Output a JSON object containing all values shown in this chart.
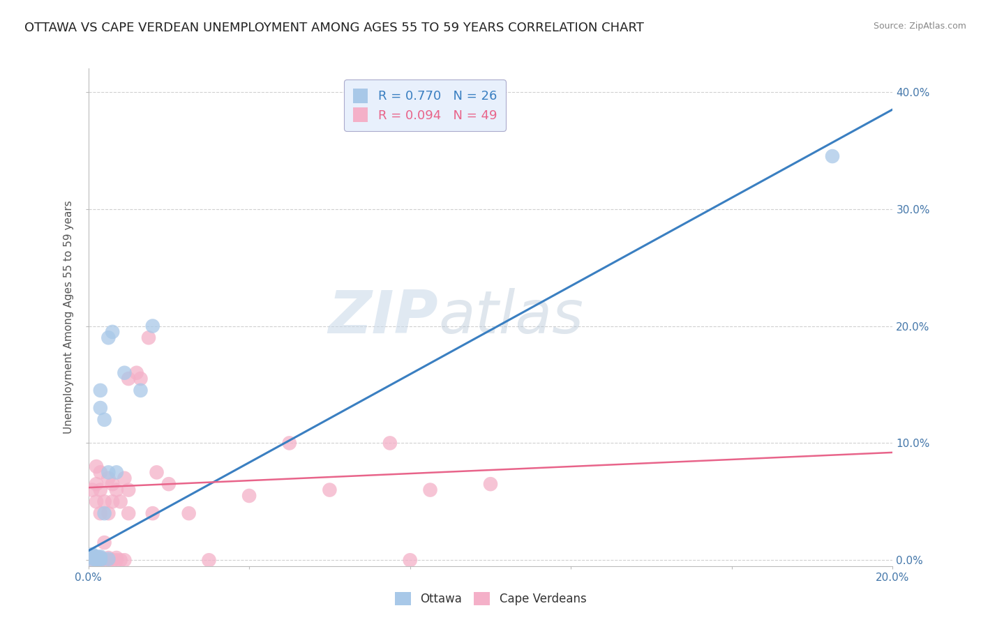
{
  "title": "OTTAWA VS CAPE VERDEAN UNEMPLOYMENT AMONG AGES 55 TO 59 YEARS CORRELATION CHART",
  "source": "Source: ZipAtlas.com",
  "ylabel": "Unemployment Among Ages 55 to 59 years",
  "xlim": [
    0.0,
    0.2
  ],
  "ylim": [
    -0.005,
    0.42
  ],
  "xticks": [
    0.0,
    0.04,
    0.08,
    0.12,
    0.16,
    0.2
  ],
  "yticks": [
    0.0,
    0.1,
    0.2,
    0.3,
    0.4
  ],
  "ottawa_R": 0.77,
  "ottawa_N": 26,
  "cape_verdean_R": 0.094,
  "cape_verdean_N": 49,
  "ottawa_color": "#a8c8e8",
  "cape_verdean_color": "#f4b0c8",
  "ottawa_line_color": "#3a7fc1",
  "cape_verdean_line_color": "#e8648a",
  "background_color": "#ffffff",
  "grid_color": "#d0d0d0",
  "ottawa_x": [
    0.001,
    0.001,
    0.001,
    0.001,
    0.001,
    0.002,
    0.002,
    0.002,
    0.002,
    0.003,
    0.003,
    0.003,
    0.003,
    0.003,
    0.003,
    0.004,
    0.004,
    0.005,
    0.005,
    0.005,
    0.006,
    0.007,
    0.009,
    0.013,
    0.016,
    0.185
  ],
  "ottawa_y": [
    0.0,
    0.002,
    0.003,
    0.004,
    0.005,
    0.0,
    0.001,
    0.002,
    0.003,
    0.0,
    0.001,
    0.002,
    0.003,
    0.145,
    0.13,
    0.04,
    0.12,
    0.001,
    0.075,
    0.19,
    0.195,
    0.075,
    0.16,
    0.145,
    0.2,
    0.345
  ],
  "cape_verdean_x": [
    0.001,
    0.001,
    0.001,
    0.001,
    0.002,
    0.002,
    0.002,
    0.002,
    0.002,
    0.003,
    0.003,
    0.003,
    0.003,
    0.003,
    0.004,
    0.004,
    0.004,
    0.005,
    0.005,
    0.005,
    0.005,
    0.006,
    0.006,
    0.006,
    0.007,
    0.007,
    0.007,
    0.008,
    0.008,
    0.009,
    0.009,
    0.01,
    0.01,
    0.01,
    0.012,
    0.013,
    0.015,
    0.016,
    0.017,
    0.02,
    0.025,
    0.03,
    0.04,
    0.05,
    0.06,
    0.075,
    0.08,
    0.085,
    0.1
  ],
  "cape_verdean_y": [
    0.0,
    0.002,
    0.004,
    0.06,
    0.0,
    0.002,
    0.05,
    0.065,
    0.08,
    0.0,
    0.002,
    0.04,
    0.06,
    0.075,
    0.0,
    0.015,
    0.05,
    0.0,
    0.002,
    0.04,
    0.07,
    0.0,
    0.05,
    0.065,
    0.0,
    0.002,
    0.06,
    0.0,
    0.05,
    0.0,
    0.07,
    0.04,
    0.06,
    0.155,
    0.16,
    0.155,
    0.19,
    0.04,
    0.075,
    0.065,
    0.04,
    0.0,
    0.055,
    0.1,
    0.06,
    0.1,
    0.0,
    0.06,
    0.065
  ],
  "watermark_zip": "ZIP",
  "watermark_atlas": "atlas",
  "legend_box_color": "#e8f0fc",
  "title_fontsize": 13,
  "label_fontsize": 11,
  "tick_fontsize": 11,
  "right_ytick_color": "#4477aa"
}
